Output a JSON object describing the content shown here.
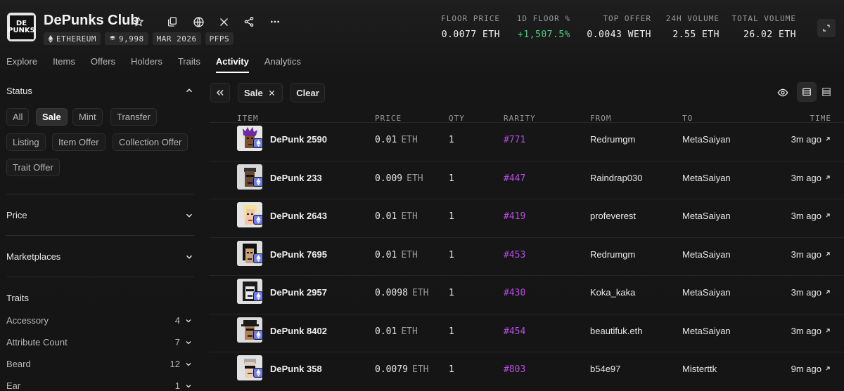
{
  "collection": {
    "logo_text_line1": "DE",
    "logo_text_line2": "PUNKS",
    "name": "DePunks Club",
    "chips": {
      "chain": "ETHEREUM",
      "supply": "9,998",
      "date": "MAR 2026",
      "category": "PFPS"
    }
  },
  "header_icons": [
    "star-icon",
    "copy-icon",
    "globe-icon",
    "x-logo-icon",
    "share-icon",
    "more-icon"
  ],
  "stats": {
    "floor_price": {
      "label": "FLOOR PRICE",
      "value": "0.0077 ETH"
    },
    "floor_change": {
      "label": "1D FLOOR %",
      "value": "+1,507.5%"
    },
    "top_offer": {
      "label": "TOP OFFER",
      "value": "0.0043 WETH"
    },
    "volume_24h": {
      "label": "24H VOLUME",
      "value": "2.55 ETH"
    },
    "total_volume": {
      "label": "TOTAL VOLUME",
      "value": "26.02 ETH"
    }
  },
  "colors": {
    "positive": "#4ccf7c",
    "rarity": "#b54de0",
    "eth_badge": "#6b7cf0"
  },
  "tabs": [
    "Explore",
    "Items",
    "Offers",
    "Holders",
    "Traits",
    "Activity",
    "Analytics"
  ],
  "active_tab": "Activity",
  "sidebar": {
    "status": {
      "title": "Status",
      "buttons": [
        "All",
        "Sale",
        "Mint",
        "Transfer",
        "Listing",
        "Item Offer",
        "Collection Offer",
        "Trait Offer"
      ],
      "selected": "Sale"
    },
    "price_label": "Price",
    "marketplaces_label": "Marketplaces",
    "traits": {
      "title": "Traits",
      "items": [
        {
          "name": "Accessory",
          "count": "4"
        },
        {
          "name": "Attribute Count",
          "count": "7"
        },
        {
          "name": "Beard",
          "count": "12"
        },
        {
          "name": "Ear",
          "count": "1"
        }
      ]
    }
  },
  "filter_bar": {
    "active_filter": "Sale",
    "clear_label": "Clear"
  },
  "table": {
    "columns": {
      "item": "ITEM",
      "price": "PRICE",
      "qty": "QTY",
      "rarity": "RARITY",
      "from": "FROM",
      "to": "TO",
      "time": "TIME"
    },
    "rows": [
      {
        "name": "DePunk 2590",
        "price": "0.01",
        "unit": "ETH",
        "qty": "1",
        "rarity": "#771",
        "from": "Redrumgm",
        "to": "MetaSaiyan",
        "time": "3m ago",
        "avatar": "purple-hair"
      },
      {
        "name": "DePunk 233",
        "price": "0.009",
        "unit": "ETH",
        "qty": "1",
        "rarity": "#447",
        "from": "Raindrap030",
        "to": "MetaSaiyan",
        "time": "3m ago",
        "avatar": "dark-cap"
      },
      {
        "name": "DePunk 2643",
        "price": "0.01",
        "unit": "ETH",
        "qty": "1",
        "rarity": "#419",
        "from": "profeverest",
        "to": "MetaSaiyan",
        "time": "3m ago",
        "avatar": "blonde"
      },
      {
        "name": "DePunk 7695",
        "price": "0.01",
        "unit": "ETH",
        "qty": "1",
        "rarity": "#453",
        "from": "Redrumgm",
        "to": "MetaSaiyan",
        "time": "3m ago",
        "avatar": "black-hair"
      },
      {
        "name": "DePunk 2957",
        "price": "0.0098",
        "unit": "ETH",
        "qty": "1",
        "rarity": "#430",
        "from": "Koka_kaka",
        "to": "MetaSaiyan",
        "time": "3m ago",
        "avatar": "hood"
      },
      {
        "name": "DePunk 8402",
        "price": "0.01",
        "unit": "ETH",
        "qty": "1",
        "rarity": "#454",
        "from": "beautifuk.eth",
        "to": "MetaSaiyan",
        "time": "3m ago",
        "avatar": "hat"
      },
      {
        "name": "DePunk 358",
        "price": "0.0079",
        "unit": "ETH",
        "qty": "1",
        "rarity": "#803",
        "from": "b54e97",
        "to": "Misterttk",
        "time": "9m ago",
        "avatar": "shades"
      }
    ]
  }
}
